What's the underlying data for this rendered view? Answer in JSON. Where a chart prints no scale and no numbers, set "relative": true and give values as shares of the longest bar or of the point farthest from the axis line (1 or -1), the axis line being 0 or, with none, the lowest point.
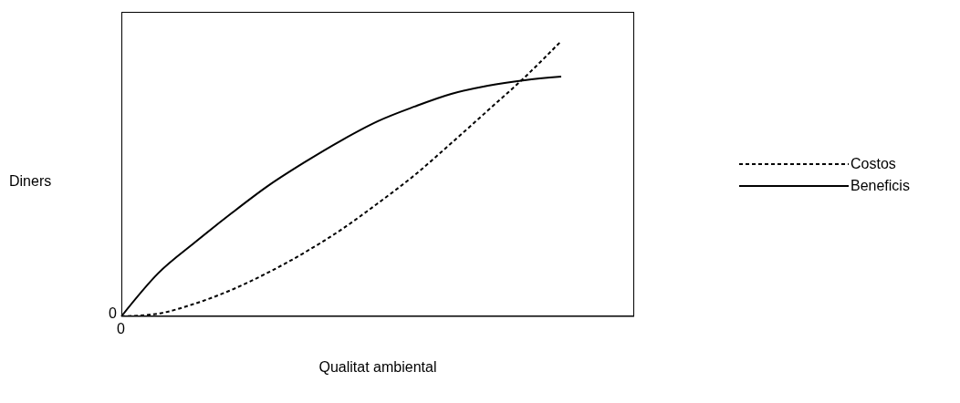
{
  "chart_data": {
    "type": "line",
    "relative": true,
    "xlabel": "Qualitat ambiental",
    "ylabel": "Diners",
    "categories": [
      null,
      null,
      null,
      null,
      null,
      null,
      null,
      null,
      null,
      null,
      null,
      null,
      null
    ],
    "series": [
      {
        "name": "Costos",
        "color": "#000000",
        "line_style": "dashed",
        "values": [
          0,
          0.01,
          0.046,
          0.096,
          0.159,
          0.232,
          0.315,
          0.411,
          0.513,
          0.629,
          0.748,
          0.868,
          1
        ]
      },
      {
        "name": "Beneficis",
        "color": "#000000",
        "line_style": "solid",
        "values": [
          0,
          0.156,
          0.268,
          0.374,
          0.474,
          0.56,
          0.639,
          0.709,
          0.762,
          0.808,
          0.838,
          0.858,
          0.871
        ]
      }
    ],
    "annotations": [
      "0",
      "0"
    ],
    "legend": "right",
    "grid": false,
    "marker": "none"
  }
}
